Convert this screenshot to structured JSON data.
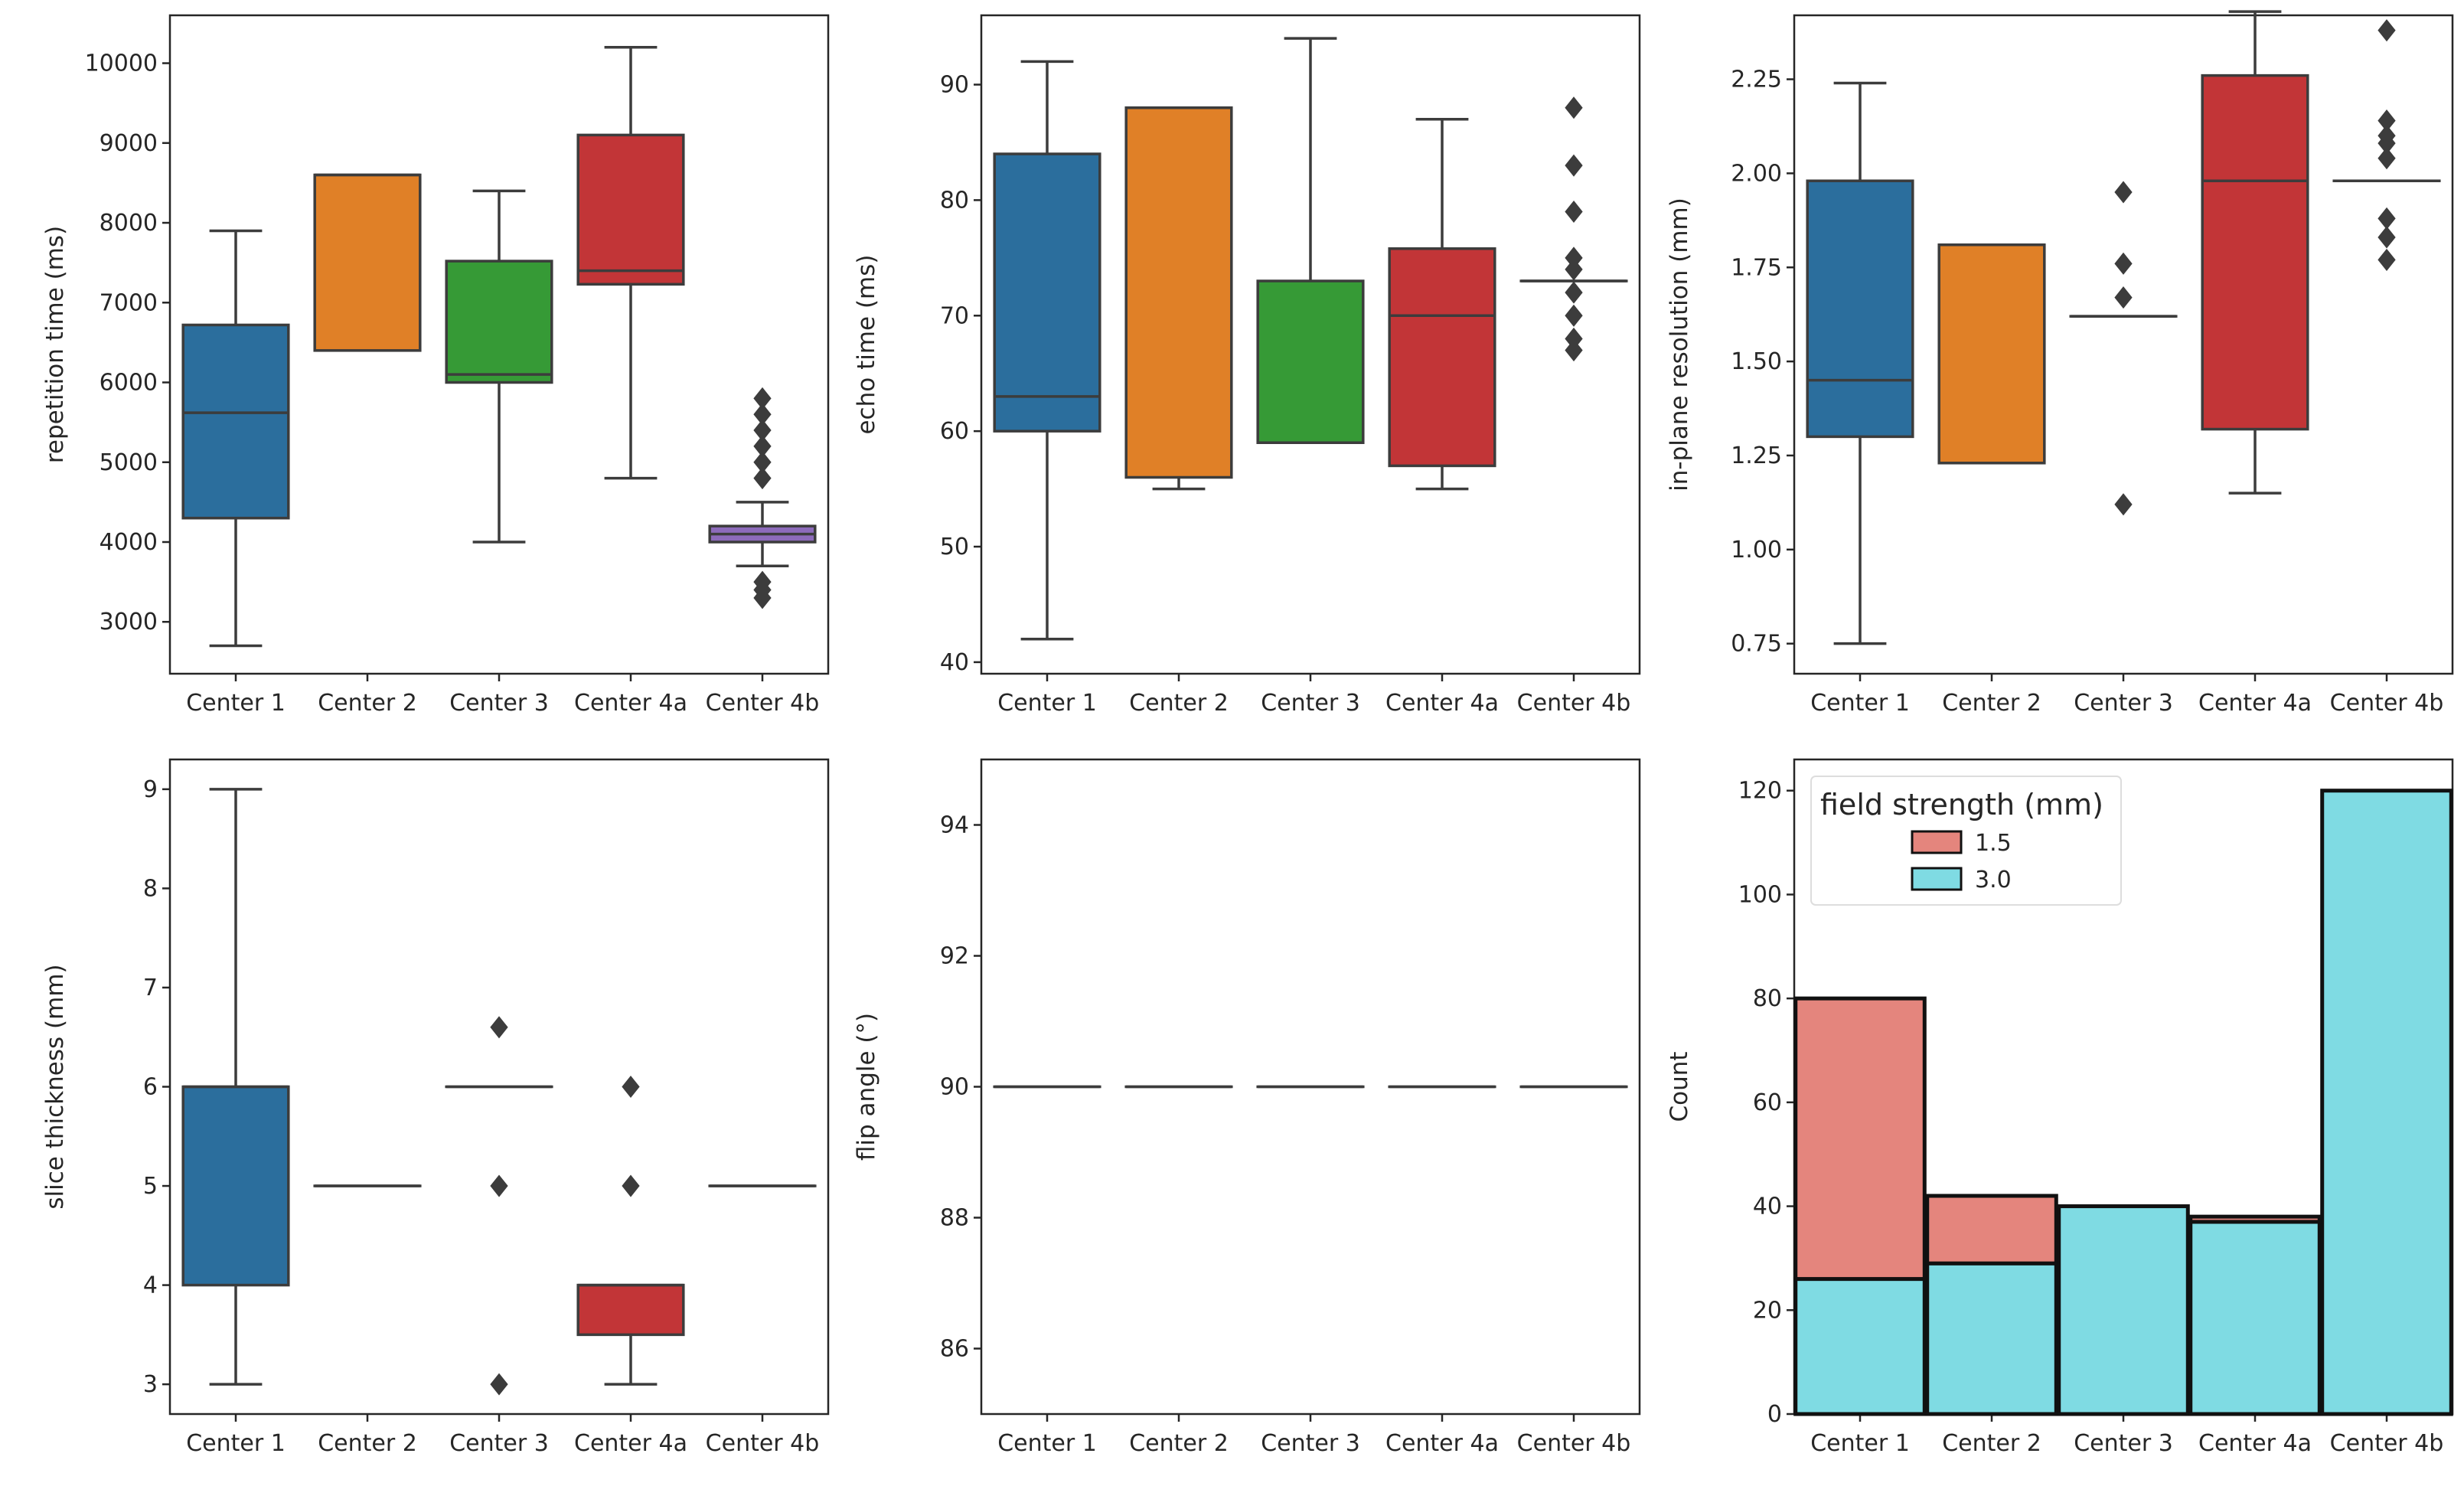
{
  "figure": {
    "background": "#ffffff"
  },
  "colors": {
    "Center 1": "#2b6e9d",
    "Center 2": "#e08027",
    "Center 3": "#369a36",
    "Center 4a": "#c23537",
    "Center 4b": "#8d6bbb",
    "line": "#3c3c3c",
    "hist_1_5": "#e4857d",
    "hist_3_0": "#7fdbe3"
  },
  "chart_data": [
    {
      "id": "tr",
      "type": "box",
      "title": "",
      "xlabel": "",
      "ylabel": "repetition time (ms)",
      "categories": [
        "Center 1",
        "Center 2",
        "Center 3",
        "Center 4a",
        "Center 4b"
      ],
      "ylim": [
        2350,
        10600
      ],
      "yticks": [
        3000,
        4000,
        5000,
        6000,
        7000,
        8000,
        9000,
        10000
      ],
      "boxes": [
        {
          "category": "Center 1",
          "whislo": 2700,
          "q1": 4300,
          "med": 5620,
          "q3": 6720,
          "whishi": 7900,
          "fliers": []
        },
        {
          "category": "Center 2",
          "whislo": 6400,
          "q1": 6400,
          "med": 8600,
          "q3": 8600,
          "whishi": 8600,
          "fliers": []
        },
        {
          "category": "Center 3",
          "whislo": 4000,
          "q1": 6000,
          "med": 6100,
          "q3": 7520,
          "whishi": 8400,
          "fliers": []
        },
        {
          "category": "Center 4a",
          "whislo": 4800,
          "q1": 7230,
          "med": 7400,
          "q3": 9100,
          "whishi": 10200,
          "fliers": []
        },
        {
          "category": "Center 4b",
          "whislo": 3700,
          "q1": 4000,
          "med": 4100,
          "q3": 4200,
          "whishi": 4500,
          "fliers": [
            3300,
            3400,
            3500,
            4800,
            5000,
            5200,
            5400,
            5600,
            5800
          ]
        }
      ]
    },
    {
      "id": "te",
      "type": "box",
      "title": "",
      "xlabel": "",
      "ylabel": "echo time (ms)",
      "categories": [
        "Center 1",
        "Center 2",
        "Center 3",
        "Center 4a",
        "Center 4b"
      ],
      "ylim": [
        39,
        96
      ],
      "yticks": [
        40,
        50,
        60,
        70,
        80,
        90
      ],
      "boxes": [
        {
          "category": "Center 1",
          "whislo": 42,
          "q1": 60,
          "med": 63,
          "q3": 84,
          "whishi": 92,
          "fliers": []
        },
        {
          "category": "Center 2",
          "whislo": 55,
          "q1": 56,
          "med": 88,
          "q3": 88,
          "whishi": 88,
          "fliers": []
        },
        {
          "category": "Center 3",
          "whislo": 59,
          "q1": 59,
          "med": 59,
          "q3": 73,
          "whishi": 94,
          "fliers": []
        },
        {
          "category": "Center 4a",
          "whislo": 55,
          "q1": 57,
          "med": 70,
          "q3": 75.8,
          "whishi": 87,
          "fliers": []
        },
        {
          "category": "Center 4b",
          "whislo": 73,
          "q1": 73,
          "med": 73,
          "q3": 73,
          "whishi": 73,
          "fliers": [
            67,
            68,
            70,
            72,
            74,
            75,
            79,
            83,
            88
          ]
        }
      ]
    },
    {
      "id": "res",
      "type": "box",
      "title": "",
      "xlabel": "",
      "ylabel": "in-plane resolution (mm)",
      "categories": [
        "Center 1",
        "Center 2",
        "Center 3",
        "Center 4a",
        "Center 4b"
      ],
      "ylim": [
        0.67,
        2.42
      ],
      "yticks": [
        0.75,
        1.0,
        1.25,
        1.5,
        1.75,
        2.0,
        2.25
      ],
      "ytick_labels": [
        "0.75",
        "1.00",
        "1.25",
        "1.50",
        "1.75",
        "2.00",
        "2.25"
      ],
      "boxes": [
        {
          "category": "Center 1",
          "whislo": 0.75,
          "q1": 1.3,
          "med": 1.45,
          "q3": 1.98,
          "whishi": 2.24,
          "fliers": []
        },
        {
          "category": "Center 2",
          "whislo": 1.23,
          "q1": 1.23,
          "med": 1.81,
          "q3": 1.81,
          "whishi": 1.81,
          "fliers": []
        },
        {
          "category": "Center 3",
          "whislo": 1.62,
          "q1": 1.62,
          "med": 1.62,
          "q3": 1.62,
          "whishi": 1.62,
          "fliers": [
            1.12,
            1.67,
            1.76,
            1.95
          ]
        },
        {
          "category": "Center 4a",
          "whislo": 1.15,
          "q1": 1.32,
          "med": 1.98,
          "q3": 2.26,
          "whishi": 2.43,
          "fliers": []
        },
        {
          "category": "Center 4b",
          "whislo": 1.98,
          "q1": 1.98,
          "med": 1.98,
          "q3": 1.98,
          "whishi": 1.98,
          "fliers": [
            1.77,
            1.83,
            1.88,
            2.04,
            2.08,
            2.1,
            2.14,
            2.38
          ]
        }
      ]
    },
    {
      "id": "slice",
      "type": "box",
      "title": "",
      "xlabel": "",
      "ylabel": "slice thickness (mm)",
      "categories": [
        "Center 1",
        "Center 2",
        "Center 3",
        "Center 4a",
        "Center 4b"
      ],
      "ylim": [
        2.7,
        9.3
      ],
      "yticks": [
        3,
        4,
        5,
        6,
        7,
        8,
        9
      ],
      "boxes": [
        {
          "category": "Center 1",
          "whislo": 3,
          "q1": 4,
          "med": 6,
          "q3": 6,
          "whishi": 9,
          "fliers": []
        },
        {
          "category": "Center 2",
          "whislo": 5,
          "q1": 5,
          "med": 5,
          "q3": 5,
          "whishi": 5,
          "fliers": []
        },
        {
          "category": "Center 3",
          "whislo": 6,
          "q1": 6,
          "med": 6,
          "q3": 6,
          "whishi": 6,
          "fliers": [
            3,
            5,
            6.6
          ]
        },
        {
          "category": "Center 4a",
          "whislo": 3,
          "q1": 3.5,
          "med": 4,
          "q3": 4,
          "whishi": 4,
          "fliers": [
            5,
            6
          ]
        },
        {
          "category": "Center 4b",
          "whislo": 5,
          "q1": 5,
          "med": 5,
          "q3": 5,
          "whishi": 5,
          "fliers": []
        }
      ]
    },
    {
      "id": "flip",
      "type": "box",
      "title": "",
      "xlabel": "",
      "ylabel": "flip angle (°)",
      "categories": [
        "Center 1",
        "Center 2",
        "Center 3",
        "Center 4a",
        "Center 4b"
      ],
      "ylim": [
        85,
        95
      ],
      "yticks": [
        86,
        88,
        90,
        92,
        94
      ],
      "boxes": [
        {
          "category": "Center 1",
          "whislo": 90,
          "q1": 90,
          "med": 90,
          "q3": 90,
          "whishi": 90,
          "fliers": []
        },
        {
          "category": "Center 2",
          "whislo": 90,
          "q1": 90,
          "med": 90,
          "q3": 90,
          "whishi": 90,
          "fliers": []
        },
        {
          "category": "Center 3",
          "whislo": 90,
          "q1": 90,
          "med": 90,
          "q3": 90,
          "whishi": 90,
          "fliers": []
        },
        {
          "category": "Center 4a",
          "whislo": 90,
          "q1": 90,
          "med": 90,
          "q3": 90,
          "whishi": 90,
          "fliers": []
        },
        {
          "category": "Center 4b",
          "whislo": 90,
          "q1": 90,
          "med": 90,
          "q3": 90,
          "whishi": 90,
          "fliers": []
        }
      ]
    },
    {
      "id": "field",
      "type": "bar",
      "stacked": true,
      "title": "",
      "xlabel": "",
      "ylabel": "Count",
      "categories": [
        "Center 1",
        "Center 2",
        "Center 3",
        "Center 4a",
        "Center 4b"
      ],
      "ylim": [
        0,
        126
      ],
      "yticks": [
        0,
        20,
        40,
        60,
        80,
        100,
        120
      ],
      "legend": {
        "title": "field strength (mm)",
        "position": "upper-left"
      },
      "series": [
        {
          "name": "3.0",
          "values": [
            26,
            29,
            40,
            37,
            120
          ]
        },
        {
          "name": "1.5",
          "values": [
            54,
            13,
            0,
            1,
            0
          ]
        }
      ]
    }
  ]
}
